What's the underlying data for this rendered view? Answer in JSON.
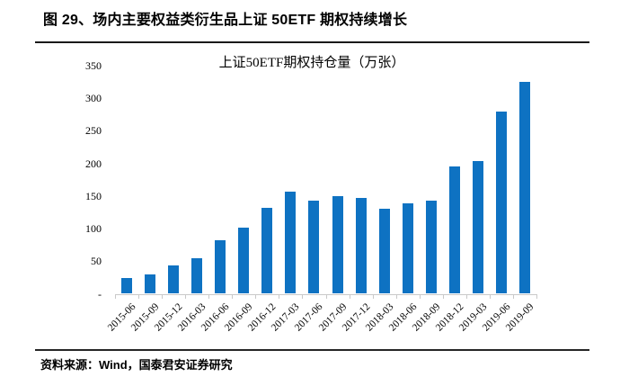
{
  "page": {
    "title": "图 29、场内主要权益类衍生品上证 50ETF 期权持续增长",
    "source": "资料来源：Wind，国泰君安证券研究"
  },
  "chart_data": {
    "type": "bar",
    "title": "上证50ETF期权持仓量（万张）",
    "categories": [
      "2015-06",
      "2015-09",
      "2015-12",
      "2016-03",
      "2016-06",
      "2016-09",
      "2016-12",
      "2017-03",
      "2017-06",
      "2017-09",
      "2017-12",
      "2018-03",
      "2018-06",
      "2018-09",
      "2018-12",
      "2019-03",
      "2019-06",
      "2019-09"
    ],
    "values": [
      24,
      30,
      44,
      54,
      82,
      102,
      132,
      157,
      143,
      150,
      147,
      130,
      139,
      143,
      195,
      203,
      280,
      325
    ],
    "xlabel": "",
    "ylabel": "",
    "ylim": [
      0,
      350
    ],
    "ytick_values": [
      0,
      50,
      100,
      150,
      200,
      250,
      300,
      350
    ],
    "ytick_labels": [
      "-",
      "50",
      "100",
      "150",
      "200",
      "250",
      "300",
      "350"
    ],
    "grid": false,
    "legend_position": "none",
    "bar_color": "#0E72C2",
    "axis_color": "#C9C9C9",
    "text_color": "#000000"
  }
}
